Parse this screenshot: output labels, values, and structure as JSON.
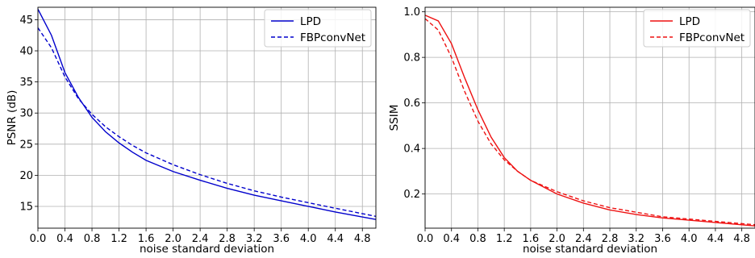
{
  "chart_data": [
    {
      "type": "line",
      "xlabel": "noise standard deviation",
      "ylabel": "PSNR (dB)",
      "xlim": [
        0,
        5
      ],
      "ylim": [
        11.5,
        47
      ],
      "xticks": [
        "0.0",
        "0.4",
        "0.8",
        "1.2",
        "1.6",
        "2.0",
        "2.4",
        "2.8",
        "3.2",
        "3.6",
        "4.0",
        "4.4",
        "4.8"
      ],
      "yticks": [
        "15",
        "20",
        "25",
        "30",
        "35",
        "40",
        "45"
      ],
      "grid": true,
      "legend_position": "top-right",
      "series": [
        {
          "name": "LPD",
          "style": "solid",
          "color": "#0000cc",
          "x": [
            0.0,
            0.2,
            0.4,
            0.6,
            0.8,
            1.0,
            1.2,
            1.4,
            1.6,
            2.0,
            2.4,
            2.8,
            3.2,
            3.6,
            4.0,
            4.4,
            5.0
          ],
          "y": [
            46.7,
            42.5,
            36.5,
            32.5,
            29.3,
            27.0,
            25.2,
            23.7,
            22.4,
            20.6,
            19.2,
            17.9,
            16.8,
            15.9,
            15.0,
            14.1,
            12.9
          ]
        },
        {
          "name": "FBPconvNet",
          "style": "dashed",
          "color": "#0000cc",
          "x": [
            0.0,
            0.2,
            0.4,
            0.6,
            0.8,
            1.0,
            1.2,
            1.4,
            1.6,
            2.0,
            2.4,
            2.8,
            3.2,
            3.6,
            4.0,
            4.4,
            5.0
          ],
          "y": [
            43.7,
            40.5,
            35.8,
            32.3,
            29.8,
            27.8,
            26.2,
            24.8,
            23.6,
            21.7,
            20.1,
            18.7,
            17.5,
            16.5,
            15.6,
            14.7,
            13.4
          ]
        }
      ]
    },
    {
      "type": "line",
      "xlabel": "noise standard deviation",
      "ylabel": "SSIM",
      "xlim": [
        0,
        5
      ],
      "ylim": [
        0.05,
        1.02
      ],
      "xticks": [
        "0.0",
        "0.4",
        "0.8",
        "1.2",
        "1.6",
        "2.0",
        "2.4",
        "2.8",
        "3.2",
        "3.6",
        "4.0",
        "4.4",
        "4.8"
      ],
      "yticks": [
        "0.2",
        "0.4",
        "0.6",
        "0.8",
        "1.0"
      ],
      "grid": true,
      "legend_position": "top-right",
      "series": [
        {
          "name": "LPD",
          "style": "solid",
          "color": "#ee1111",
          "x": [
            0.0,
            0.2,
            0.4,
            0.6,
            0.8,
            1.0,
            1.2,
            1.4,
            1.6,
            2.0,
            2.4,
            2.8,
            3.2,
            3.6,
            4.0,
            4.4,
            5.0
          ],
          "y": [
            0.985,
            0.96,
            0.86,
            0.71,
            0.57,
            0.45,
            0.36,
            0.3,
            0.26,
            0.2,
            0.16,
            0.13,
            0.11,
            0.095,
            0.085,
            0.075,
            0.06
          ]
        },
        {
          "name": "FBPconvNet",
          "style": "dashed",
          "color": "#ee1111",
          "x": [
            0.0,
            0.2,
            0.4,
            0.6,
            0.8,
            1.0,
            1.2,
            1.4,
            1.6,
            2.0,
            2.4,
            2.8,
            3.2,
            3.6,
            4.0,
            4.4,
            5.0
          ],
          "y": [
            0.97,
            0.92,
            0.8,
            0.65,
            0.52,
            0.42,
            0.35,
            0.3,
            0.26,
            0.21,
            0.17,
            0.14,
            0.12,
            0.1,
            0.09,
            0.08,
            0.065
          ]
        }
      ]
    }
  ]
}
